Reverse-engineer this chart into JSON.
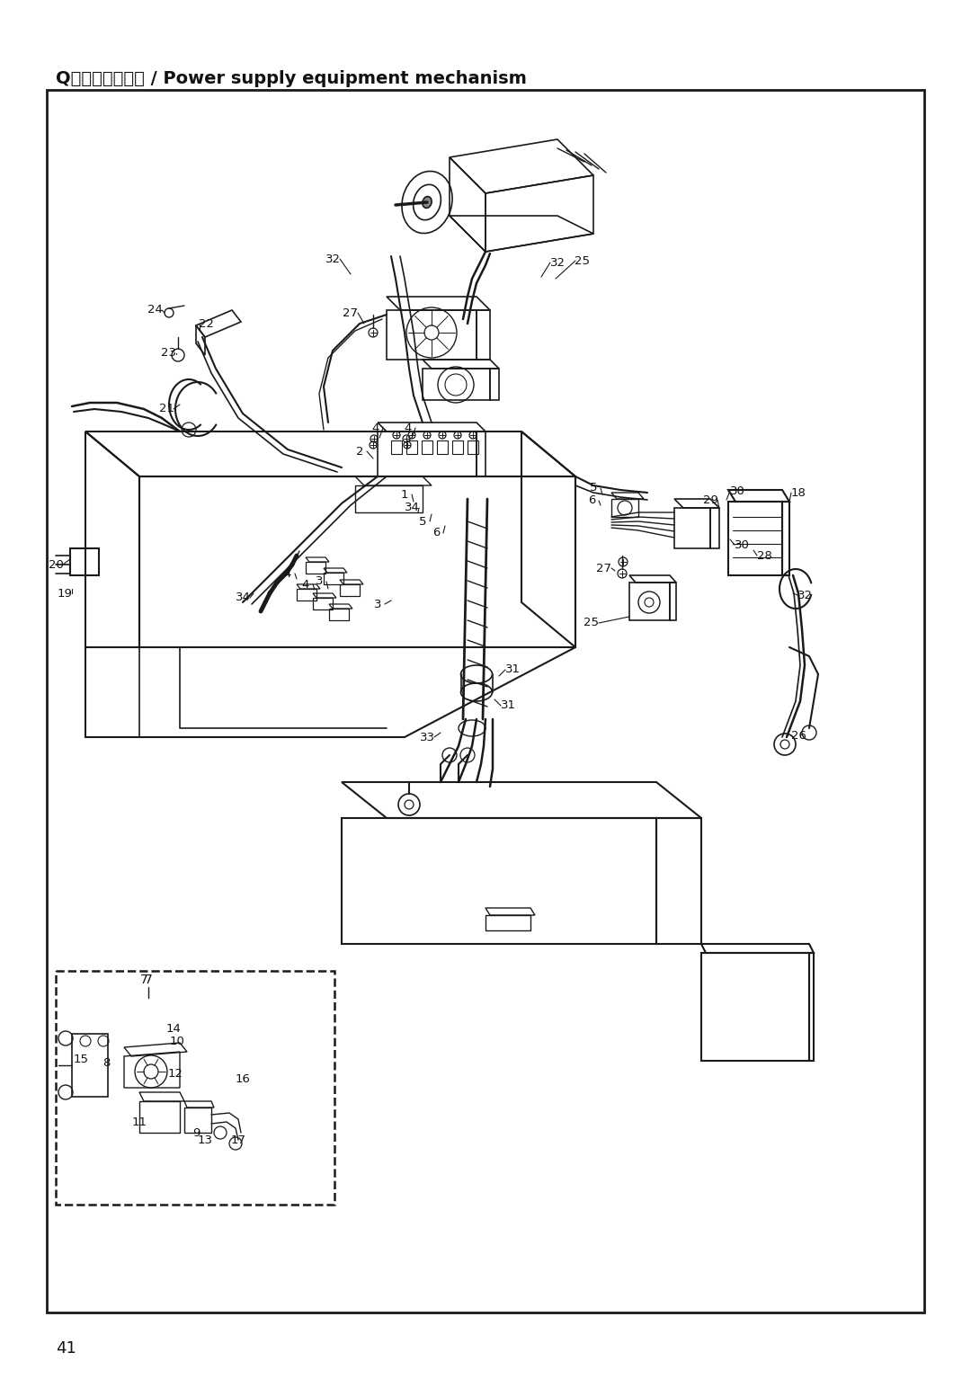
{
  "title": "Q．电气部品装置 / Power supply equipment mechanism",
  "page_number": "41",
  "bg_color": "#ffffff",
  "border_color": "#1a1a1a",
  "text_color": "#111111",
  "title_fontsize": 14,
  "page_num_fontsize": 13,
  "line_color": "#1a1a1a",
  "fig_width": 10.8,
  "fig_height": 15.34,
  "dpi": 100
}
